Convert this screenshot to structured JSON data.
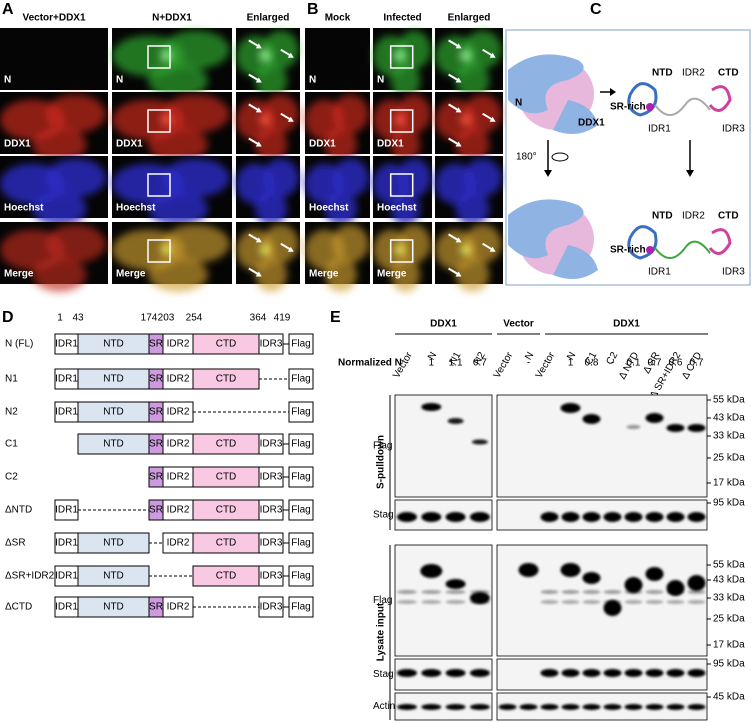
{
  "panel_a": {
    "letter": "A",
    "columns": [
      "Vector+DDX1",
      "N+DDX1",
      "Enlarged"
    ],
    "rows": [
      "N",
      "DDX1",
      "Hoechst",
      "Merge"
    ]
  },
  "panel_b": {
    "letter": "B",
    "columns": [
      "Mock",
      "Infected",
      "Enlarged"
    ],
    "rows": [
      "N",
      "DDX1",
      "Hoechst",
      "Merge"
    ]
  },
  "panel_c": {
    "letter": "C",
    "labels": {
      "n": "N",
      "ddx1": "DDX1",
      "ntd": "NTD",
      "ctd": "CTD",
      "idr1": "IDR1",
      "idr2": "IDR2",
      "idr3": "IDR3",
      "sr_rich": "SR-rich",
      "rotation": "180°"
    }
  },
  "panel_d": {
    "letter": "D",
    "positions": [
      1,
      43,
      174,
      203,
      254,
      364,
      419
    ],
    "tag": "Flag",
    "constructs": [
      {
        "name": "N (FL)",
        "domains": [
          "IDR1",
          "NTD",
          "SR",
          "IDR2",
          "CTD",
          "IDR3"
        ]
      },
      {
        "name": "N1",
        "domains": [
          "IDR1",
          "NTD",
          "SR",
          "IDR2",
          "CTD"
        ]
      },
      {
        "name": "N2",
        "domains": [
          "IDR1",
          "NTD",
          "SR",
          "IDR2"
        ]
      },
      {
        "name": "C1",
        "domains": [
          "NTD",
          "SR",
          "IDR2",
          "CTD",
          "IDR3"
        ]
      },
      {
        "name": "C2",
        "domains": [
          "SR",
          "IDR2",
          "CTD",
          "IDR3"
        ]
      },
      {
        "name": "ΔNTD",
        "domains": [
          "IDR1",
          "SR",
          "IDR2",
          "CTD",
          "IDR3"
        ]
      },
      {
        "name": "ΔSR",
        "domains": [
          "IDR1",
          "NTD",
          "IDR2",
          "CTD",
          "IDR3"
        ]
      },
      {
        "name": "ΔSR+IDR2",
        "domains": [
          "IDR1",
          "NTD",
          "CTD",
          "IDR3"
        ]
      },
      {
        "name": "ΔCTD",
        "domains": [
          "IDR1",
          "NTD",
          "SR",
          "IDR2",
          "IDR3"
        ]
      }
    ]
  },
  "panel_e": {
    "letter": "E",
    "groups": [
      "DDX1",
      "Vector",
      "DDX1"
    ],
    "lanes_left": [
      "Vector",
      "N",
      "N1",
      "N2"
    ],
    "lanes_right": [
      "Vector",
      "N",
      "Vector",
      "N",
      "C1",
      "C2",
      "Δ NTD",
      "Δ SR",
      "Δ SR+IDR2",
      "Δ CTD"
    ],
    "normalized_label": "Normalized N",
    "normalized_left": [
      "-",
      "1",
      "1.1",
      "0.7"
    ],
    "normalized_right": [
      "-",
      "-",
      "-",
      "1",
      "0.8",
      "-",
      "0.1",
      "0.7",
      "0.6",
      "0.7"
    ],
    "sections": [
      "S-pulldown",
      "Lysate input"
    ],
    "blots": [
      {
        "name": "Flag",
        "markers": [
          "55 kDa",
          "43 kDa",
          "33 kDa",
          "25 kDa",
          "17 kDa"
        ]
      },
      {
        "name": "Stag",
        "markers": [
          "95 kDa"
        ]
      },
      {
        "name": "Flag",
        "markers": [
          "55 kDa",
          "43 kDa",
          "33 kDa",
          "25 kDa",
          "17 kDa"
        ]
      },
      {
        "name": "Stag",
        "markers": [
          "95 kDa"
        ]
      },
      {
        "name": "Actin",
        "markers": [
          "45 kDa"
        ]
      }
    ]
  }
}
